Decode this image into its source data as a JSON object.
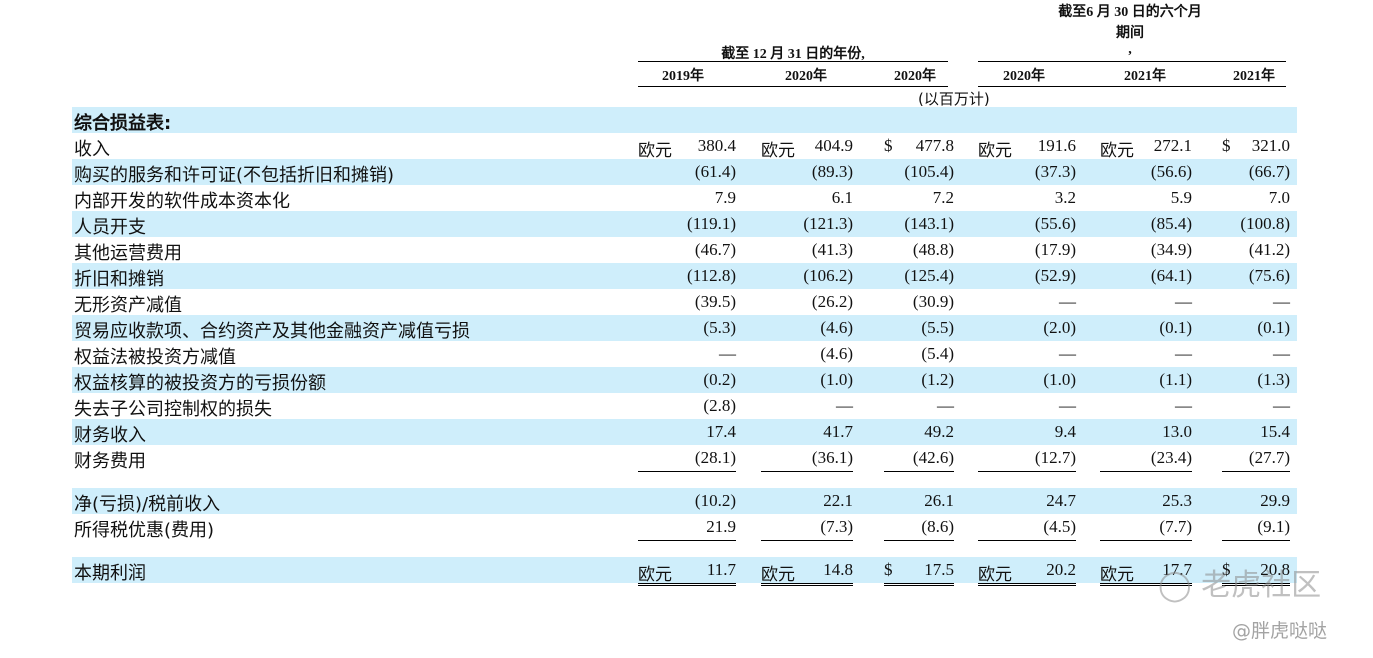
{
  "header": {
    "group1_title": "截至 12 月 31 日的年份,",
    "group2_title_line1": "截至6 月 30 日的六个月",
    "group2_title_line2": "期间",
    "group2_title_line3": ",",
    "columns": [
      "2019年",
      "2020年",
      "2020年",
      "2020年",
      "2021年",
      "2021年"
    ],
    "units": "(以百万计)"
  },
  "section_title": "综合损益表:",
  "rows": [
    {
      "label": "收入",
      "cur": [
        "欧元",
        "欧元",
        "$",
        "欧元",
        "欧元",
        "$"
      ],
      "values": [
        "380.4",
        "404.9",
        "477.8",
        "191.6",
        "272.1",
        "321.0"
      ]
    },
    {
      "label": "购买的服务和许可证(不包括折旧和摊销)",
      "values": [
        "(61.4)",
        "(89.3)",
        "(105.4)",
        "(37.3)",
        "(56.6)",
        "(66.7)"
      ]
    },
    {
      "label": "内部开发的软件成本资本化",
      "values": [
        "7.9",
        "6.1",
        "7.2",
        "3.2",
        "5.9",
        "7.0"
      ]
    },
    {
      "label": "人员开支",
      "values": [
        "(119.1)",
        "(121.3)",
        "(143.1)",
        "(55.6)",
        "(85.4)",
        "(100.8)"
      ]
    },
    {
      "label": "其他运营费用",
      "values": [
        "(46.7)",
        "(41.3)",
        "(48.8)",
        "(17.9)",
        "(34.9)",
        "(41.2)"
      ]
    },
    {
      "label": "折旧和摊销",
      "values": [
        "(112.8)",
        "(106.2)",
        "(125.4)",
        "(52.9)",
        "(64.1)",
        "(75.6)"
      ]
    },
    {
      "label": "无形资产减值",
      "values": [
        "(39.5)",
        "(26.2)",
        "(30.9)",
        "—",
        "—",
        "—"
      ]
    },
    {
      "label": "贸易应收款项、合约资产及其他金融资产减值亏损",
      "values": [
        "(5.3)",
        "(4.6)",
        "(5.5)",
        "(2.0)",
        "(0.1)",
        "(0.1)"
      ]
    },
    {
      "label": "权益法被投资方减值",
      "values": [
        "—",
        "(4.6)",
        "(5.4)",
        "—",
        "—",
        "—"
      ]
    },
    {
      "label": "权益核算的被投资方的亏损份额",
      "values": [
        "(0.2)",
        "(1.0)",
        "(1.2)",
        "(1.0)",
        "(1.1)",
        "(1.3)"
      ]
    },
    {
      "label": "失去子公司控制权的损失",
      "values": [
        "(2.8)",
        "—",
        "—",
        "—",
        "—",
        "—"
      ]
    },
    {
      "label": "财务收入",
      "values": [
        "17.4",
        "41.7",
        "49.2",
        "9.4",
        "13.0",
        "15.4"
      ]
    },
    {
      "label": "财务费用",
      "values": [
        "(28.1)",
        "(36.1)",
        "(42.6)",
        "(12.7)",
        "(23.4)",
        "(27.7)"
      ]
    },
    {
      "label": "净(亏损)/税前收入",
      "values": [
        "(10.2)",
        "22.1",
        "26.1",
        "24.7",
        "25.3",
        "29.9"
      ]
    },
    {
      "label": "所得税优惠(费用)",
      "values": [
        "21.9",
        "(7.3)",
        "(8.6)",
        "(4.5)",
        "(7.7)",
        "(9.1)"
      ]
    },
    {
      "label": "本期利润",
      "cur": [
        "欧元",
        "欧元",
        "$",
        "欧元",
        "欧元",
        "$"
      ],
      "values": [
        "11.7",
        "14.8",
        "17.5",
        "20.2",
        "17.7",
        "20.8"
      ]
    }
  ],
  "watermark": {
    "brand": "老虎社区",
    "handle": "@胖虎哒哒"
  }
}
